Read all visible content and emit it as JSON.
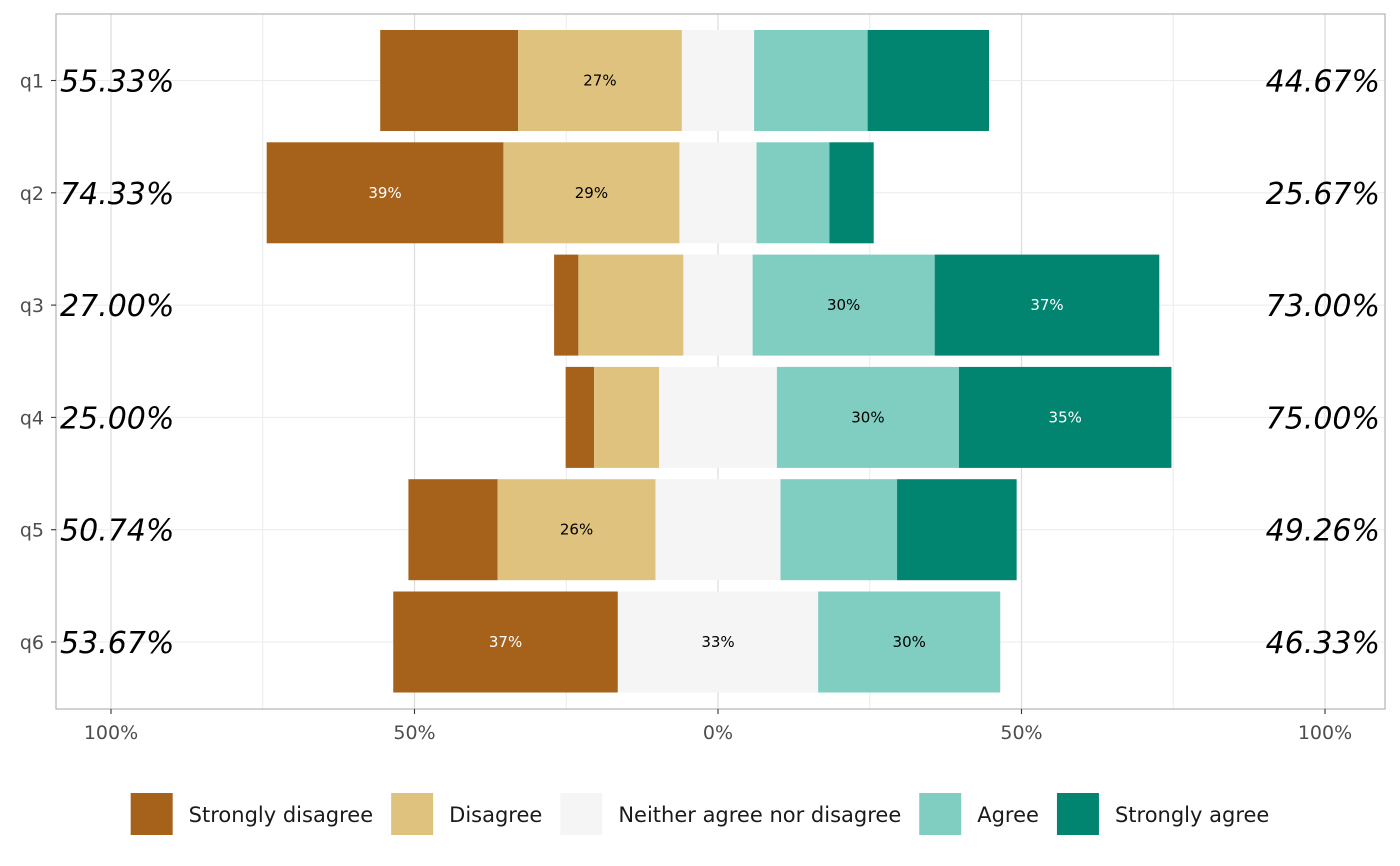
{
  "chart_data": {
    "type": "bar",
    "orientation": "horizontal-diverging",
    "title": "",
    "xlabel": "",
    "ylabel": "",
    "xlim": [
      -100,
      100
    ],
    "x_ticks": [
      {
        "value": -100,
        "label": "100%"
      },
      {
        "value": -50,
        "label": "50%"
      },
      {
        "value": 0,
        "label": "0%"
      },
      {
        "value": 50,
        "label": "50%"
      },
      {
        "value": 100,
        "label": "100%"
      }
    ],
    "grid": true,
    "legend_position": "bottom",
    "categories": [
      "q1",
      "q2",
      "q3",
      "q4",
      "q5",
      "q6"
    ],
    "left_percent_labels": [
      "55.33%",
      "74.33%",
      "27.00%",
      "25.00%",
      "50.74%",
      "53.67%"
    ],
    "right_percent_labels": [
      "44.67%",
      "25.67%",
      "73.00%",
      "75.00%",
      "49.26%",
      "46.33%"
    ],
    "series": [
      {
        "name": "Strongly disagree",
        "color": "#a6611a",
        "label_color": "#ffffff",
        "values": [
          22.7,
          39,
          4,
          4.7,
          14.7,
          37
        ],
        "labels": [
          "",
          "39%",
          "",
          "",
          "",
          "37%"
        ]
      },
      {
        "name": "Disagree",
        "color": "#dfc27d",
        "label_color": "#000000",
        "values": [
          27,
          29,
          17.3,
          10.7,
          26,
          0
        ],
        "labels": [
          "27%",
          "29%",
          "",
          "",
          "26%",
          ""
        ]
      },
      {
        "name": "Neither agree nor disagree",
        "color": "#f5f5f5",
        "label_color": "#000000",
        "values": [
          11.9,
          12.7,
          11.4,
          19.4,
          20.6,
          33
        ],
        "labels": [
          "",
          "",
          "",
          "",
          "",
          "33%"
        ]
      },
      {
        "name": "Agree",
        "color": "#80cdc1",
        "label_color": "#000000",
        "values": [
          18.7,
          12,
          30,
          30,
          19.2,
          30
        ],
        "labels": [
          "",
          "",
          "30%",
          "30%",
          "",
          "30%"
        ]
      },
      {
        "name": "Strongly agree",
        "color": "#018571",
        "label_color": "#ffffff",
        "values": [
          20,
          7.3,
          37,
          35,
          19.7,
          0
        ],
        "labels": [
          "",
          "",
          "37%",
          "35%",
          "",
          ""
        ]
      }
    ]
  }
}
